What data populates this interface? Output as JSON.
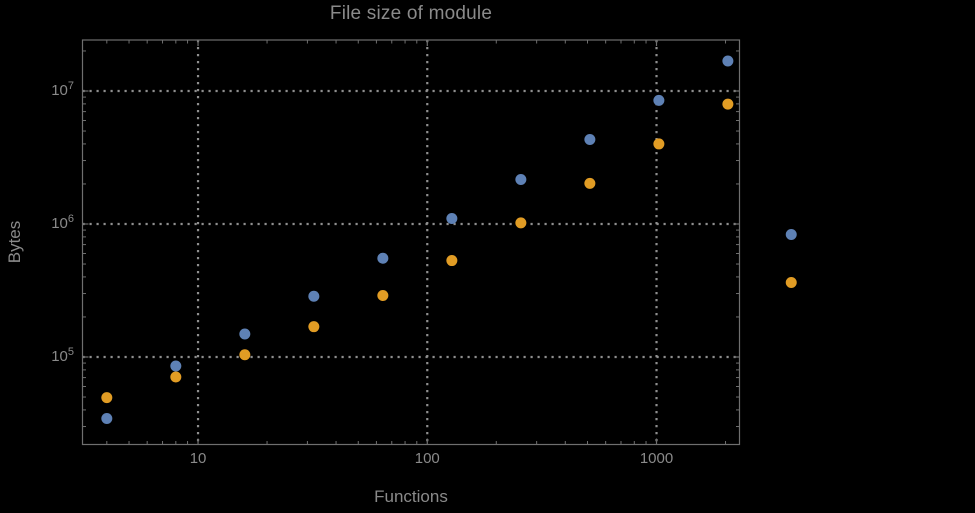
{
  "chart_data": {
    "type": "scatter",
    "title": "File size of module",
    "xlabel": "Functions",
    "ylabel": "Bytes",
    "x_scale": "log",
    "y_scale": "log",
    "grid": "dotted-major",
    "legend": "none",
    "marker_size_px": 11,
    "colors": {
      "background": "#000000",
      "frame": "#6f6f6f",
      "grid": "#8f8f8f",
      "text": "#8a8a8a"
    },
    "axes": {
      "x": {
        "log_range": [
          0.496,
          3.362
        ],
        "major_ticks": [
          {
            "value": 10,
            "label": "10"
          },
          {
            "value": 100,
            "label": "100"
          },
          {
            "value": 1000,
            "label": "1000"
          }
        ]
      },
      "y": {
        "log_range": [
          4.342,
          7.3835
        ],
        "major_ticks": [
          {
            "value": 100000,
            "base": "10",
            "exp": "5"
          },
          {
            "value": 1000000,
            "base": "10",
            "exp": "6"
          },
          {
            "value": 10000000,
            "base": "10",
            "exp": "7"
          }
        ]
      }
    },
    "series": [
      {
        "name": "series-blue",
        "color": "#5E81B5",
        "points": [
          [
            4,
            34500
          ],
          [
            8,
            85500
          ],
          [
            16,
            149000
          ],
          [
            32,
            286000
          ],
          [
            64,
            553000
          ],
          [
            128,
            1100000
          ],
          [
            256,
            2160000
          ],
          [
            512,
            4320000
          ],
          [
            1024,
            8500000
          ],
          [
            2048,
            16800000
          ],
          [
            3870,
            834000
          ]
        ]
      },
      {
        "name": "series-orange",
        "color": "#E19C24",
        "points": [
          [
            4,
            49500
          ],
          [
            8,
            70700
          ],
          [
            16,
            104000
          ],
          [
            32,
            169000
          ],
          [
            64,
            290000
          ],
          [
            128,
            531000
          ],
          [
            256,
            1020000
          ],
          [
            512,
            2020000
          ],
          [
            1024,
            4000000
          ],
          [
            2048,
            7970000
          ],
          [
            3870,
            363000
          ]
        ]
      }
    ]
  }
}
